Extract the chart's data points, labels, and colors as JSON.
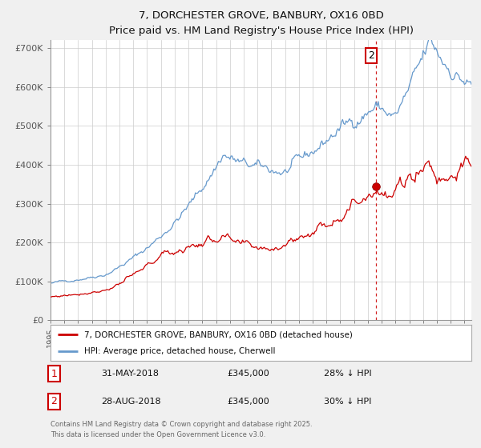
{
  "title": "7, DORCHESTER GROVE, BANBURY, OX16 0BD",
  "subtitle": "Price paid vs. HM Land Registry's House Price Index (HPI)",
  "ylim": [
    0,
    720000
  ],
  "yticks": [
    0,
    100000,
    200000,
    300000,
    400000,
    500000,
    600000,
    700000
  ],
  "ytick_labels": [
    "£0",
    "£100K",
    "£200K",
    "£300K",
    "£400K",
    "£500K",
    "£600K",
    "£700K"
  ],
  "xlim_start": 1995.0,
  "xlim_end": 2025.5,
  "line1_color": "#cc0000",
  "line2_color": "#6699cc",
  "legend_line1": "7, DORCHESTER GROVE, BANBURY, OX16 0BD (detached house)",
  "legend_line2": "HPI: Average price, detached house, Cherwell",
  "annotation1_label": "1",
  "annotation1_date": "31-MAY-2018",
  "annotation1_price": "£345,000",
  "annotation1_hpi": "28% ↓ HPI",
  "annotation2_label": "2",
  "annotation2_date": "28-AUG-2018",
  "annotation2_price": "£345,000",
  "annotation2_hpi": "30% ↓ HPI",
  "vline_x": 2018.58,
  "vline_color": "#cc0000",
  "marker_x": 2018.58,
  "marker_y": 345000,
  "footer": "Contains HM Land Registry data © Crown copyright and database right 2025.\nThis data is licensed under the Open Government Licence v3.0.",
  "background_color": "#f0f0f0",
  "plot_bg_color": "#ffffff",
  "grid_color": "#cccccc"
}
